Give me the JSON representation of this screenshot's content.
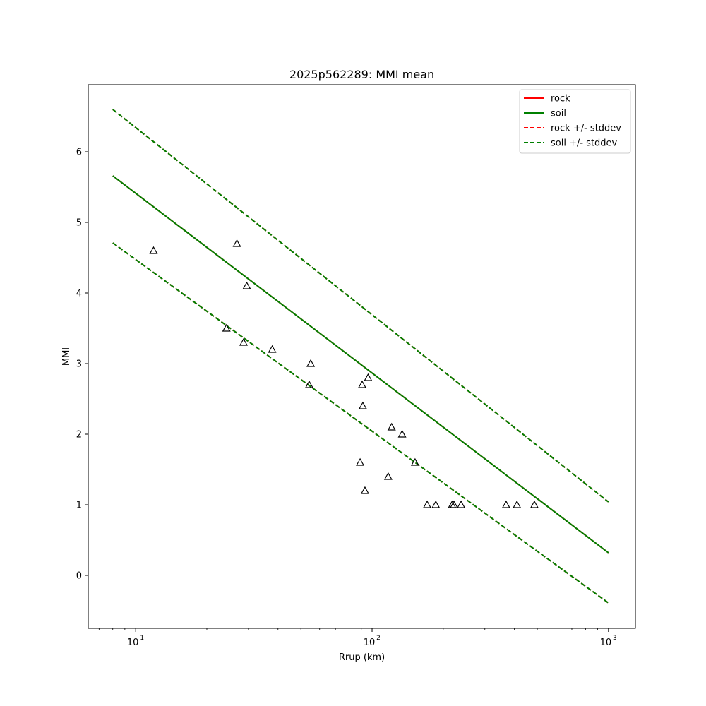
{
  "chart_data": {
    "type": "line",
    "title": "2025p562289: MMI mean",
    "xlabel": "Rrup (km)",
    "ylabel": "MMI",
    "xscale": "log",
    "xlim": [
      6.3,
      1300
    ],
    "ylim": [
      -0.75,
      6.95
    ],
    "x_ticks": [
      {
        "value": 10,
        "base": "10",
        "exp": "1"
      },
      {
        "value": 100,
        "base": "10",
        "exp": "2"
      },
      {
        "value": 1000,
        "base": "10",
        "exp": "3"
      }
    ],
    "y_ticks": [
      {
        "value": 0,
        "label": "0"
      },
      {
        "value": 1,
        "label": "1"
      },
      {
        "value": 2,
        "label": "2"
      },
      {
        "value": 3,
        "label": "3"
      },
      {
        "value": 4,
        "label": "4"
      },
      {
        "value": 5,
        "label": "5"
      },
      {
        "value": 6,
        "label": "6"
      }
    ],
    "grid": false,
    "legend_position": "top-right",
    "series": [
      {
        "name": "rock",
        "color": "#ff0000",
        "dash": "solid",
        "x": [
          8,
          1000
        ],
        "y": [
          5.66,
          0.32
        ]
      },
      {
        "name": "soil",
        "color": "#008000",
        "dash": "solid",
        "x": [
          8,
          1000
        ],
        "y": [
          5.66,
          0.32
        ]
      },
      {
        "name": "rock +/- stddev",
        "color": "#ff0000",
        "dash": "dashed",
        "x": [
          8,
          1000
        ],
        "y": [
          6.6,
          1.04
        ],
        "x2": [
          8,
          1000
        ],
        "y2": [
          4.71,
          -0.39
        ]
      },
      {
        "name": "soil +/- stddev",
        "color": "#008000",
        "dash": "dashed",
        "x": [
          8,
          1000
        ],
        "y": [
          6.6,
          1.04
        ],
        "x2": [
          8,
          1000
        ],
        "y2": [
          4.71,
          -0.39
        ]
      }
    ],
    "observations": {
      "marker": "triangle-open",
      "color": "#000000",
      "points": [
        {
          "x": 11.9,
          "y": 4.6
        },
        {
          "x": 24.2,
          "y": 3.5
        },
        {
          "x": 26.8,
          "y": 4.7
        },
        {
          "x": 28.6,
          "y": 3.3
        },
        {
          "x": 29.5,
          "y": 4.1
        },
        {
          "x": 37.8,
          "y": 3.2
        },
        {
          "x": 54.2,
          "y": 2.7
        },
        {
          "x": 55.0,
          "y": 3.0
        },
        {
          "x": 89.0,
          "y": 1.6
        },
        {
          "x": 90.8,
          "y": 2.7
        },
        {
          "x": 91.4,
          "y": 2.4
        },
        {
          "x": 93.3,
          "y": 1.2
        },
        {
          "x": 96.2,
          "y": 2.8
        },
        {
          "x": 117.0,
          "y": 1.4
        },
        {
          "x": 121.0,
          "y": 2.1
        },
        {
          "x": 134.0,
          "y": 2.0
        },
        {
          "x": 152.0,
          "y": 1.6
        },
        {
          "x": 171.0,
          "y": 1.0
        },
        {
          "x": 186.0,
          "y": 1.0
        },
        {
          "x": 218.0,
          "y": 1.0
        },
        {
          "x": 222.0,
          "y": 1.0
        },
        {
          "x": 238.0,
          "y": 1.0
        },
        {
          "x": 369.0,
          "y": 1.0
        },
        {
          "x": 410.0,
          "y": 1.0
        },
        {
          "x": 486.0,
          "y": 1.0
        }
      ]
    }
  }
}
